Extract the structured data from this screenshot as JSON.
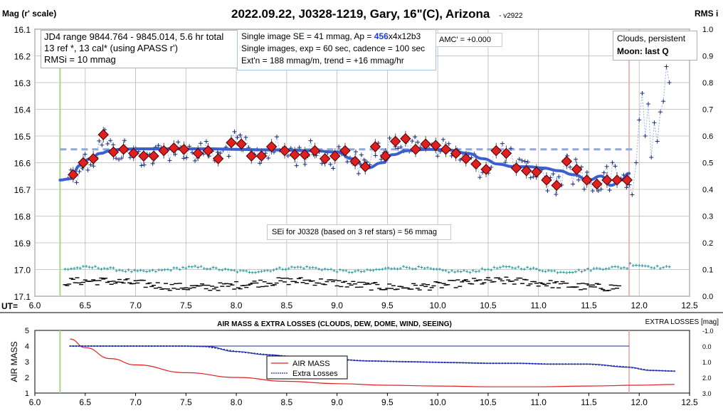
{
  "header": {
    "title": "2022.09.22, J0328-1219, Gary, 16\"(C), Arizona",
    "version": "- v2922",
    "left_axis_label": "Mag (r' scale)",
    "right_axis_label": "RMS i",
    "ut_label": "UT="
  },
  "info_boxes": {
    "jd": [
      "JD4 range 9844.764 - 9845.014, 5.6 hr total",
      "13 ref *, 13 cal*  (using APASS r')",
      "RMSi = 10 mmag"
    ],
    "se": {
      "line1_pre": "Single image SE = 41 mmag, Ap = ",
      "line1_ap": "456",
      "line1_post": "x4x12b3",
      "line2": "Single images, exp = 60 sec, cadence = 100 sec",
      "line3": "Ext'n = 188 mmag/m, trend = +16 mmag/hr"
    },
    "amc": "AMC' = +0.000",
    "clouds": "Clouds, persistent",
    "moon": "Moon: last Q",
    "sei": "SEi for J0328 (based on 3 ref stars) = 56 mmag"
  },
  "colors": {
    "curve": "#3a5fd0",
    "diamond": "#e02020",
    "points": "#1a2f7a",
    "dashed_link": "#9bb0e8",
    "mean_line": "#8fa8d8",
    "rms": "#2a9aa0",
    "airmass": "#e02020",
    "extra_losses": "#1f2fb0",
    "start_line": "#a9d88a",
    "end_line": "#f0a0a0"
  },
  "chart_data": [
    {
      "type": "scatter",
      "title": "2022.09.22, J0328-1219, Gary, 16\"(C), Arizona",
      "xlabel": "UT=",
      "ylabel": "Mag (r' scale)",
      "y2label": "RMS i",
      "xlim": [
        6.0,
        12.5
      ],
      "ylim": [
        17.1,
        16.1
      ],
      "y2lim": [
        0.0,
        1.0
      ],
      "x_ticks": [
        "6.0",
        "6.5",
        "7.0",
        "7.5",
        "8.0",
        "8.5",
        "9.0",
        "9.5",
        "10.0",
        "10.5",
        "11.0",
        "11.5",
        "12.0",
        "12.5"
      ],
      "y_ticks": [
        "16.1",
        "16.2",
        "16.3",
        "16.4",
        "16.5",
        "16.6",
        "16.7",
        "16.8",
        "16.9",
        "17.0",
        "17.1"
      ],
      "y2_ticks": [
        "1.0",
        "0.9",
        "0.8",
        "0.7",
        "0.6",
        "0.5",
        "0.4",
        "0.3",
        "0.2",
        "0.1",
        "0.0"
      ],
      "vertical_markers": [
        6.25,
        11.9
      ],
      "mean_level": 16.55,
      "binned_x": [
        6.38,
        6.48,
        6.58,
        6.68,
        6.78,
        6.88,
        6.98,
        7.08,
        7.18,
        7.28,
        7.38,
        7.48,
        7.62,
        7.72,
        7.82,
        7.95,
        8.05,
        8.15,
        8.25,
        8.35,
        8.48,
        8.58,
        8.68,
        8.78,
        8.88,
        8.98,
        9.08,
        9.18,
        9.28,
        9.38,
        9.48,
        9.58,
        9.68,
        9.78,
        9.88,
        9.98,
        10.08,
        10.18,
        10.28,
        10.38,
        10.48,
        10.58,
        10.68,
        10.78,
        10.88,
        10.98,
        11.08,
        11.18,
        11.28,
        11.38,
        11.48,
        11.58,
        11.68,
        11.78,
        11.88
      ],
      "binned_mag": [
        16.645,
        16.6,
        16.585,
        16.495,
        16.56,
        16.55,
        16.565,
        16.575,
        16.575,
        16.555,
        16.545,
        16.55,
        16.565,
        16.555,
        16.585,
        16.525,
        16.53,
        16.575,
        16.575,
        16.54,
        16.555,
        16.57,
        16.57,
        16.555,
        16.585,
        16.575,
        16.555,
        16.595,
        16.615,
        16.54,
        16.575,
        16.52,
        16.51,
        16.55,
        16.53,
        16.535,
        16.55,
        16.565,
        16.585,
        16.605,
        16.625,
        16.555,
        16.565,
        16.62,
        16.63,
        16.635,
        16.665,
        16.685,
        16.595,
        16.625,
        16.665,
        16.68,
        16.665,
        16.665,
        16.665
      ],
      "trend_curve": {
        "x": [
          6.25,
          6.35,
          6.45,
          6.55,
          6.65,
          6.75,
          6.85,
          7.0,
          7.25,
          7.5,
          7.75,
          8.0,
          8.25,
          8.5,
          8.75,
          9.0,
          9.15,
          9.3,
          9.45,
          9.55,
          9.7,
          9.9,
          10.1,
          10.3,
          10.45,
          10.6,
          10.75,
          10.9,
          11.05,
          11.2,
          11.35,
          11.5,
          11.62,
          11.72,
          11.82,
          11.9
        ],
        "mag": [
          16.665,
          16.66,
          16.61,
          16.585,
          16.565,
          16.555,
          16.55,
          16.548,
          16.548,
          16.548,
          16.548,
          16.55,
          16.552,
          16.553,
          16.555,
          16.56,
          16.585,
          16.62,
          16.6,
          16.57,
          16.555,
          16.55,
          16.552,
          16.565,
          16.585,
          16.605,
          16.615,
          16.615,
          16.62,
          16.63,
          16.645,
          16.665,
          16.65,
          16.685,
          16.665,
          16.64
        ]
      },
      "rms_series_x_range": [
        6.3,
        12.3
      ],
      "rms_series_level": [
        0.09,
        0.11
      ],
      "ref_series_x_range": [
        6.3,
        11.8
      ],
      "ref_series_level": [
        0.03,
        0.08
      ]
    },
    {
      "type": "line",
      "title": "AIR MASS & EXTRA LOSSES (CLOUDS, DEW, DOME, WIND, SEEING)",
      "xlabel": "",
      "ylabel": "AIR MASS",
      "y2label": "EXTRA LOSSES [mag]",
      "xlim": [
        6.0,
        12.5
      ],
      "ylim": [
        1,
        5
      ],
      "y2lim": [
        3.0,
        -1.0
      ],
      "x_ticks": [
        "6.0",
        "6.5",
        "7.0",
        "7.5",
        "8.0",
        "8.5",
        "9.0",
        "9.5",
        "10.0",
        "10.5",
        "11.0",
        "11.5",
        "12.0",
        "12.5"
      ],
      "y_ticks": [
        "5",
        "4",
        "3",
        "2",
        "1"
      ],
      "y2_ticks": [
        "-1.0",
        "0.0",
        "1.0",
        "2.0",
        "3.0"
      ],
      "vertical_markers": [
        6.25,
        11.9
      ],
      "series": [
        {
          "name": "AIR MASS",
          "x": [
            6.35,
            6.5,
            6.75,
            7.0,
            7.5,
            8.0,
            8.5,
            9.0,
            9.5,
            10.0,
            10.5,
            11.0,
            11.5,
            12.0,
            12.35
          ],
          "values": [
            4.45,
            3.9,
            3.2,
            2.8,
            2.3,
            2.0,
            1.75,
            1.6,
            1.5,
            1.45,
            1.4,
            1.4,
            1.45,
            1.5,
            1.55
          ]
        },
        {
          "name": "Extra Losses",
          "x": [
            6.35,
            7.0,
            7.5,
            7.7,
            8.0,
            8.3,
            8.6,
            9.0,
            9.3,
            9.7,
            10.1,
            10.5,
            10.8,
            11.1,
            11.5,
            11.9,
            12.1,
            12.35
          ],
          "values": [
            0.0,
            0.0,
            0.0,
            0.03,
            0.35,
            0.55,
            0.7,
            0.85,
            0.95,
            1.0,
            1.05,
            1.1,
            1.1,
            1.15,
            1.15,
            1.35,
            1.55,
            1.6
          ]
        }
      ],
      "hline_y2": 0.0
    }
  ]
}
